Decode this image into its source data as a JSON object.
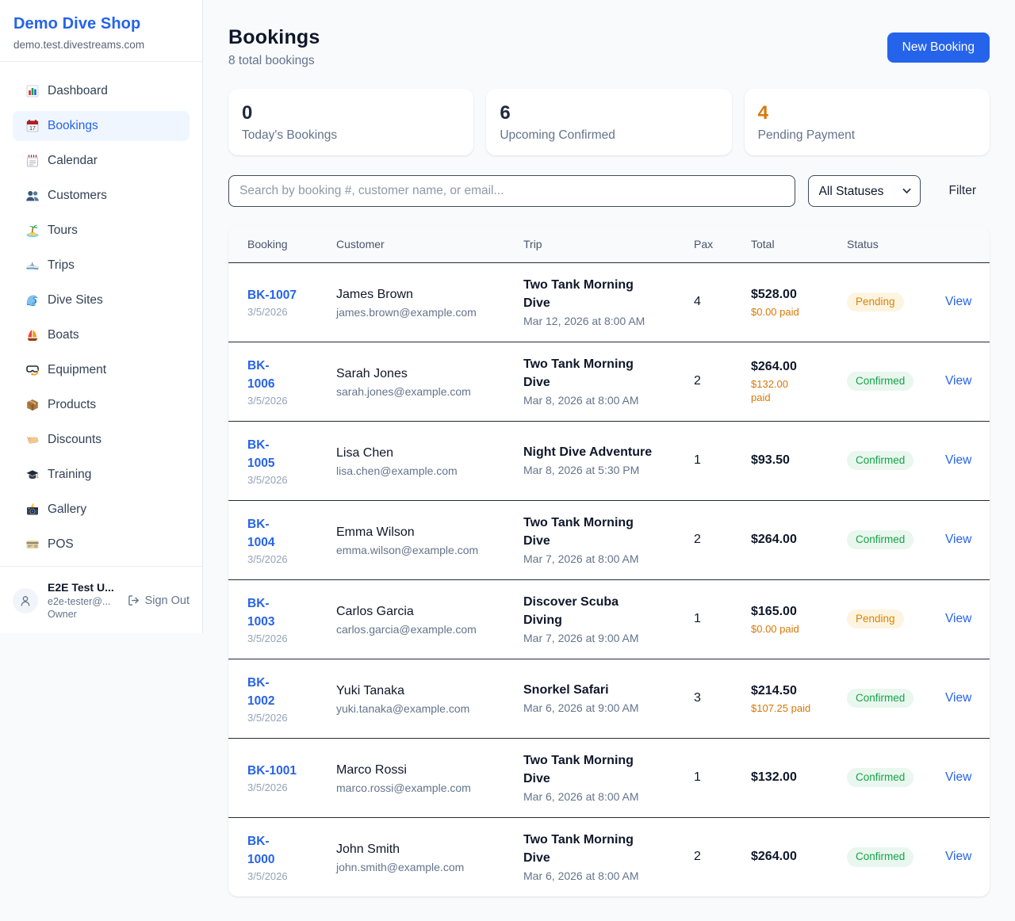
{
  "sidebar": {
    "shop_name": "Demo Dive Shop",
    "shop_domain": "demo.test.divestreams.com",
    "nav": [
      {
        "label": "Dashboard",
        "icon": "bar-chart-icon",
        "active": false
      },
      {
        "label": "Bookings",
        "icon": "calendar-icon",
        "active": true
      },
      {
        "label": "Calendar",
        "icon": "spiral-calendar-icon",
        "active": false
      },
      {
        "label": "Customers",
        "icon": "people-icon",
        "active": false
      },
      {
        "label": "Tours",
        "icon": "island-icon",
        "active": false
      },
      {
        "label": "Trips",
        "icon": "speedboat-icon",
        "active": false
      },
      {
        "label": "Dive Sites",
        "icon": "wave-icon",
        "active": false
      },
      {
        "label": "Boats",
        "icon": "sailboat-icon",
        "active": false
      },
      {
        "label": "Equipment",
        "icon": "dive-mask-icon",
        "active": false
      },
      {
        "label": "Products",
        "icon": "package-icon",
        "active": false
      },
      {
        "label": "Discounts",
        "icon": "tag-icon",
        "active": false
      },
      {
        "label": "Training",
        "icon": "graduation-cap-icon",
        "active": false
      },
      {
        "label": "Gallery",
        "icon": "camera-flash-icon",
        "active": false
      },
      {
        "label": "POS",
        "icon": "credit-card-icon",
        "active": false
      }
    ],
    "user": {
      "name": "E2E Test U...",
      "email": "e2e-tester@...",
      "role": "Owner",
      "sign_out_label": "Sign Out"
    }
  },
  "header": {
    "title": "Bookings",
    "subtitle": "8 total bookings",
    "new_booking_label": "New Booking"
  },
  "stats": [
    {
      "value": "0",
      "label": "Today's Bookings",
      "color": "dark"
    },
    {
      "value": "6",
      "label": "Upcoming Confirmed",
      "color": "dark"
    },
    {
      "value": "4",
      "label": "Pending Payment",
      "color": "orange"
    }
  ],
  "filters": {
    "search_placeholder": "Search by booking #, customer name, or email...",
    "status_selected": "All Statuses",
    "filter_label": "Filter"
  },
  "table": {
    "columns": [
      "Booking",
      "Customer",
      "Trip",
      "Pax",
      "Total",
      "Status",
      ""
    ],
    "rows": [
      {
        "booking_id": "BK-1007",
        "booking_date": "3/5/2026",
        "customer_name": "James Brown",
        "customer_email": "james.brown@example.com",
        "trip_name": "Two Tank Morning\nDive",
        "trip_datetime": "Mar 12, 2026 at 8:00 AM",
        "pax": "4",
        "total": "$528.00",
        "paid": "$0.00 paid",
        "status": "Pending",
        "action": "View"
      },
      {
        "booking_id": "BK-\n1006",
        "booking_date": "3/5/2026",
        "customer_name": "Sarah Jones",
        "customer_email": "sarah.jones@example.com",
        "trip_name": "Two Tank Morning\nDive",
        "trip_datetime": "Mar 8, 2026 at 8:00 AM",
        "pax": "2",
        "total": "$264.00",
        "paid": "$132.00\npaid",
        "status": "Confirmed",
        "action": "View"
      },
      {
        "booking_id": "BK-\n1005",
        "booking_date": "3/5/2026",
        "customer_name": "Lisa Chen",
        "customer_email": "lisa.chen@example.com",
        "trip_name": "Night Dive Adventure",
        "trip_datetime": "Mar 8, 2026 at 5:30 PM",
        "pax": "1",
        "total": "$93.50",
        "paid": "",
        "status": "Confirmed",
        "action": "View"
      },
      {
        "booking_id": "BK-\n1004",
        "booking_date": "3/5/2026",
        "customer_name": "Emma Wilson",
        "customer_email": "emma.wilson@example.com",
        "trip_name": "Two Tank Morning\nDive",
        "trip_datetime": "Mar 7, 2026 at 8:00 AM",
        "pax": "2",
        "total": "$264.00",
        "paid": "",
        "status": "Confirmed",
        "action": "View"
      },
      {
        "booking_id": "BK-\n1003",
        "booking_date": "3/5/2026",
        "customer_name": "Carlos Garcia",
        "customer_email": "carlos.garcia@example.com",
        "trip_name": "Discover Scuba\nDiving",
        "trip_datetime": "Mar 7, 2026 at 9:00 AM",
        "pax": "1",
        "total": "$165.00",
        "paid": "$0.00 paid",
        "status": "Pending",
        "action": "View"
      },
      {
        "booking_id": "BK-\n1002",
        "booking_date": "3/5/2026",
        "customer_name": "Yuki Tanaka",
        "customer_email": "yuki.tanaka@example.com",
        "trip_name": "Snorkel Safari",
        "trip_datetime": "Mar 6, 2026 at 9:00 AM",
        "pax": "3",
        "total": "$214.50",
        "paid": "$107.25 paid",
        "status": "Confirmed",
        "action": "View"
      },
      {
        "booking_id": "BK-1001",
        "booking_date": "3/5/2026",
        "customer_name": "Marco Rossi",
        "customer_email": "marco.rossi@example.com",
        "trip_name": "Two Tank Morning\nDive",
        "trip_datetime": "Mar 6, 2026 at 8:00 AM",
        "pax": "1",
        "total": "$132.00",
        "paid": "",
        "status": "Confirmed",
        "action": "View"
      },
      {
        "booking_id": "BK-\n1000",
        "booking_date": "3/5/2026",
        "customer_name": "John Smith",
        "customer_email": "john.smith@example.com",
        "trip_name": "Two Tank Morning\nDive",
        "trip_datetime": "Mar 6, 2026 at 8:00 AM",
        "pax": "2",
        "total": "$264.00",
        "paid": "",
        "status": "Confirmed",
        "action": "View"
      }
    ]
  },
  "colors": {
    "accent_blue": "#2563eb",
    "pending_orange": "#d97706",
    "confirmed_green": "#16a34a",
    "page_background": "#f8fafc"
  }
}
